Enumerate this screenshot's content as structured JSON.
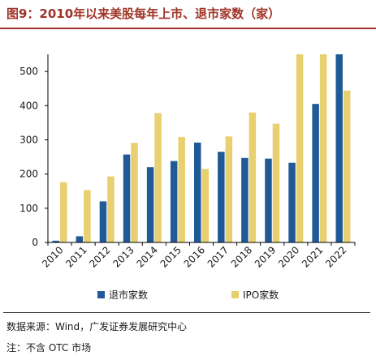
{
  "header": {
    "title": "图9：2010年以来美股每年上市、退市家数（家）"
  },
  "chart_data": {
    "type": "bar",
    "categories": [
      "2010",
      "2011",
      "2012",
      "2013",
      "2014",
      "2015",
      "2016",
      "2017",
      "2018",
      "2019",
      "2020",
      "2021",
      "2022"
    ],
    "series": [
      {
        "name": "退市家数",
        "color": "#1f5a96",
        "values": [
          5,
          18,
          120,
          257,
          220,
          238,
          292,
          265,
          247,
          245,
          233,
          405,
          550
        ]
      },
      {
        "name": "IPO家数",
        "color": "#e8cf6f",
        "values": [
          176,
          153,
          193,
          291,
          378,
          308,
          215,
          310,
          380,
          347,
          550,
          550,
          444
        ]
      }
    ],
    "ylim": [
      0,
      550
    ],
    "yticks": [
      0,
      100,
      200,
      300,
      400,
      500
    ],
    "legend_position": "bottom",
    "grid": false
  },
  "footer": {
    "source": "数据来源：Wind，广发证券发展研究中心",
    "note": "注：不含 OTC 市场"
  }
}
